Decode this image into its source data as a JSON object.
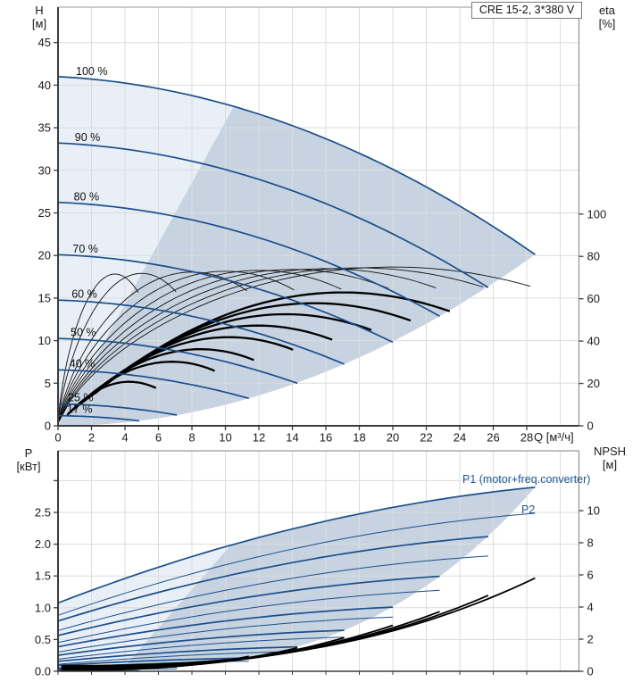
{
  "title_box": {
    "label": "CRE 15-2, 3*380 V"
  },
  "axis_headers": {
    "h": {
      "l1": "H",
      "l2": "[м]"
    },
    "eta": {
      "l1": "eta",
      "l2": "[%]"
    },
    "p": {
      "l1": "P",
      "l2": "[кВт]"
    },
    "npsh": {
      "l1": "NPSH",
      "l2": "[м]"
    }
  },
  "colors": {
    "curve_blue": "#1b4f8c",
    "label_blue": "#1d5796",
    "fill_light": "#e9eff7",
    "fill_dark": "#c7d3e1",
    "grid": "#dcdcdc",
    "frame": "#999999",
    "axis": "#3c3c3c",
    "text": "#1a1a1a",
    "black_curve": "#111111"
  },
  "chart_data": [
    {
      "type": "line",
      "title": "CRE 15-2, 3*380 V",
      "xlabel": "Q [м³/ч]",
      "ylabel_left": "H [м]",
      "ylabel_right": "eta [%]",
      "x_ticks": [
        0,
        2,
        4,
        6,
        8,
        10,
        12,
        14,
        16,
        18,
        20,
        22,
        24,
        26,
        28
      ],
      "h_ticks": [
        0,
        5,
        10,
        15,
        20,
        25,
        30,
        35,
        40,
        45
      ],
      "eta_ticks": [
        0,
        20,
        40,
        60,
        80,
        100
      ],
      "x_range": [
        0,
        31.1
      ],
      "h_range": [
        0,
        49.2
      ],
      "grid": true,
      "legend_position": "none",
      "h_model": {
        "h0": 41,
        "lin": 0.1,
        "quad": 0.0222,
        "q_end_100": 28.5
      },
      "speed_curves": [
        {
          "pct": 100,
          "label": "100 %",
          "h_at_q0": 41.0,
          "q_end": 28.5,
          "h_at_end": 20.1
        },
        {
          "pct": 90,
          "label": "90 %",
          "h_at_q0": 33.2,
          "q_end": 25.7,
          "h_at_end": 16.3
        },
        {
          "pct": 80,
          "label": "80 %",
          "h_at_q0": 26.2,
          "q_end": 22.8,
          "h_at_end": 12.9
        },
        {
          "pct": 70,
          "label": "70 %",
          "h_at_q0": 20.1,
          "q_end": 20.0,
          "h_at_end": 9.9
        },
        {
          "pct": 60,
          "label": "60 %",
          "h_at_q0": 14.8,
          "q_end": 17.1,
          "h_at_end": 7.2
        },
        {
          "pct": 50,
          "label": "50 %",
          "h_at_q0": 10.3,
          "q_end": 14.3,
          "h_at_end": 5.0
        },
        {
          "pct": 40,
          "label": "40 %",
          "h_at_q0": 6.6,
          "q_end": 11.4,
          "h_at_end": 3.2
        },
        {
          "pct": 25,
          "label": "25 %",
          "h_at_q0": 2.6,
          "q_end": 7.1,
          "h_at_end": 1.3
        },
        {
          "pct": 17,
          "label": "17 %",
          "h_at_q0": 1.2,
          "q_end": 4.85,
          "h_at_end": 0.6
        }
      ],
      "efficiency_pump": {
        "peak_eta": 75,
        "peak_q_at_100": 20,
        "end_q_factor": 0.99,
        "note": "thin black eta curves, one per speed, right axis"
      },
      "efficiency_total": {
        "peak_eta": 63,
        "peak_q_at_100": 17,
        "start_q_factor": 2.2,
        "end_q_factor": 23.4,
        "speed_exp": 0.8,
        "note": "thick black eta curves, one per speed, right axis"
      },
      "operating_area": {
        "left_boundary": [
          [
            0,
            0
          ],
          [
            10.5,
            37.5
          ]
        ],
        "top_boundary": "100% speed curve to (28.5, 20.1)",
        "bottom_boundary": "curve-end locus H = 20.1*(Q/28.5)^2"
      }
    },
    {
      "type": "line",
      "xlabel": "Q [м³/ч]",
      "ylabel_left": "P [кВт]",
      "ylabel_right": "NPSH [м]",
      "p_tick_labels": [
        "0.0",
        "0.5",
        "1.0",
        "1.5",
        "2.0",
        "2.5"
      ],
      "p_ticks": [
        0,
        0.5,
        1.0,
        1.5,
        2.0,
        2.5
      ],
      "p_unlabeled_ticks": [
        3.0
      ],
      "npsh_ticks": [
        0,
        2,
        4,
        6,
        8,
        10
      ],
      "p_range": [
        0,
        3.47
      ],
      "grid": true,
      "p1_label": "P1 (motor+freq.converter)",
      "p2_label": "P2",
      "p1_model": {
        "c0": 1.05,
        "c1": 0.1018,
        "c2": -0.00133,
        "offset": 0.025
      },
      "p2_model": {
        "c0": 0.88,
        "c1": 0.092,
        "c2": -0.00125,
        "offset": 0
      },
      "npsh_model": {
        "base": 0.35,
        "gain": 5.45,
        "exp": 2.6,
        "q_ref": 28.5
      },
      "p1_curves": [
        {
          "pct": 100,
          "p_at_q0": 1.08,
          "q_end": 28.5,
          "p_at_end": 2.87
        },
        {
          "pct": 90,
          "p_at_q0": 0.79,
          "q_end": 25.7,
          "p_at_end": 2.1
        },
        {
          "pct": 80,
          "p_at_q0": 0.56,
          "q_end": 22.8,
          "p_at_end": 1.48
        },
        {
          "pct": 70,
          "p_at_q0": 0.39,
          "q_end": 20.0,
          "p_at_end": 1.0
        },
        {
          "pct": 60,
          "p_at_q0": 0.25,
          "q_end": 17.1,
          "p_at_end": 0.64
        },
        {
          "pct": 50,
          "p_at_q0": 0.16,
          "q_end": 14.3,
          "p_at_end": 0.38
        },
        {
          "pct": 40,
          "p_at_q0": 0.09,
          "q_end": 11.4,
          "p_at_end": 0.21
        },
        {
          "pct": 25,
          "p_at_q0": 0.04,
          "q_end": 7.1,
          "p_at_end": 0.07
        },
        {
          "pct": 17,
          "p_at_q0": 0.03,
          "q_end": 4.85,
          "p_at_end": 0.04
        }
      ],
      "npsh_curves": [
        {
          "pct": 100,
          "q_end": 28.5,
          "npsh_end": 5.8
        },
        {
          "pct": 90,
          "q_end": 25.7,
          "npsh_end": 4.7
        },
        {
          "pct": 80,
          "q_end": 22.8,
          "npsh_end": 3.7
        },
        {
          "pct": 70,
          "q_end": 20.0,
          "npsh_end": 2.8
        },
        {
          "pct": 60,
          "q_end": 17.1,
          "npsh_end": 2.1
        },
        {
          "pct": 50,
          "q_end": 14.3,
          "npsh_end": 1.5
        },
        {
          "pct": 40,
          "q_end": 11.4,
          "npsh_end": 0.9
        }
      ],
      "operating_area": {
        "left_boundary": [
          [
            3.8,
            0.0
          ],
          [
            10.3,
            1.98
          ]
        ],
        "top_boundary": "100% P1 curve to (28.5, 2.87)",
        "bottom_boundary": "curve-end locus of P1 curves"
      }
    }
  ]
}
